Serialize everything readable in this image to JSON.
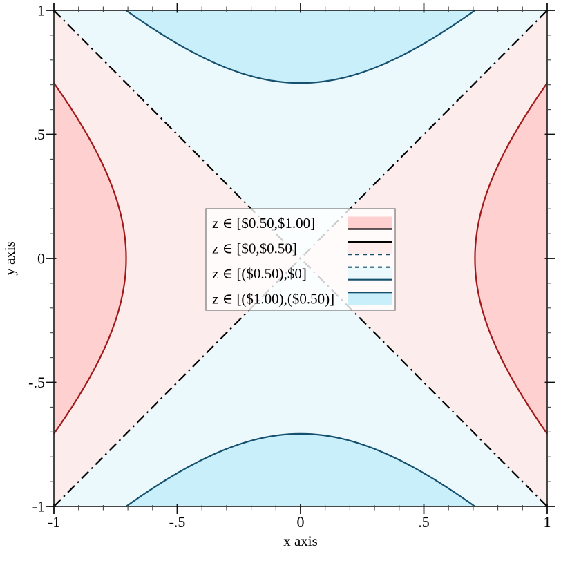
{
  "chart_data": {
    "type": "contour-intervals",
    "function": "z(x,y) = x^2 - y^2",
    "x_range": [
      -1,
      1
    ],
    "y_range": [
      -1,
      1
    ],
    "xlabel": "x axis",
    "ylabel": "y axis",
    "x_ticks": {
      "values": [
        -1,
        -0.5,
        0,
        0.5,
        1
      ],
      "labels": [
        "-1",
        "-.5",
        "0",
        ".5",
        "1"
      ]
    },
    "y_ticks": {
      "values": [
        -1,
        -0.5,
        0,
        0.5,
        1
      ],
      "labels": [
        "-1",
        "-.5",
        "0",
        ".5",
        "1"
      ]
    },
    "minor_tick_step": 0.1,
    "z_levels": [
      -1,
      -0.5,
      0,
      0.5,
      1
    ],
    "intervals": [
      {
        "label": "z ∈ [$0.50,$1.00]",
        "z_min": 0.5,
        "z_max": 1,
        "fill": "#ffd0d0"
      },
      {
        "label": "z ∈ [$0,$0.50]",
        "z_min": 0,
        "z_max": 0.5,
        "fill": "#fdecec"
      },
      {
        "label": "z ∈ [($0.50),$0]",
        "z_min": -0.5,
        "z_max": 0,
        "fill": "#ebf8fc"
      },
      {
        "label": "z ∈ [($1.00),($0.50)]",
        "z_min": -1,
        "z_max": -0.5,
        "fill": "#c8effa"
      }
    ],
    "contour_lines": [
      {
        "level": 0.5,
        "color": "#a01818",
        "style": "solid"
      },
      {
        "level": 0,
        "color": "#000000",
        "style": "dash-dot"
      },
      {
        "level": -0.5,
        "color": "#15506e",
        "style": "solid"
      }
    ],
    "legend": {
      "background": "rgba(255,255,255,0.8)",
      "border_color": "#888888",
      "items": [
        {
          "label": "z ∈ [$0.50,$1.00]",
          "fill": "#ffd0d0",
          "top_line": null,
          "bottom_line": {
            "color": "#000000",
            "style": "solid"
          }
        },
        {
          "label": "z ∈ [$0,$0.50]",
          "fill": "#fdecec",
          "top_line": {
            "color": "#000000",
            "style": "solid"
          },
          "bottom_line": {
            "color": "#15506e",
            "style": "dashed"
          }
        },
        {
          "label": "z ∈ [($0.50),$0]",
          "fill": "#ebf8fc",
          "top_line": {
            "color": "#15506e",
            "style": "dashed"
          },
          "bottom_line": {
            "color": "#15506e",
            "style": "solid"
          }
        },
        {
          "label": "z ∈ [($1.00),($0.50)]",
          "fill": "#c8effa",
          "top_line": {
            "color": "#15506e",
            "style": "solid"
          },
          "bottom_line": null
        }
      ]
    },
    "colors": {
      "frame": "#1a1a1a",
      "major_tick": "#111111",
      "minor_tick": "#444444",
      "text": "#000000"
    }
  }
}
